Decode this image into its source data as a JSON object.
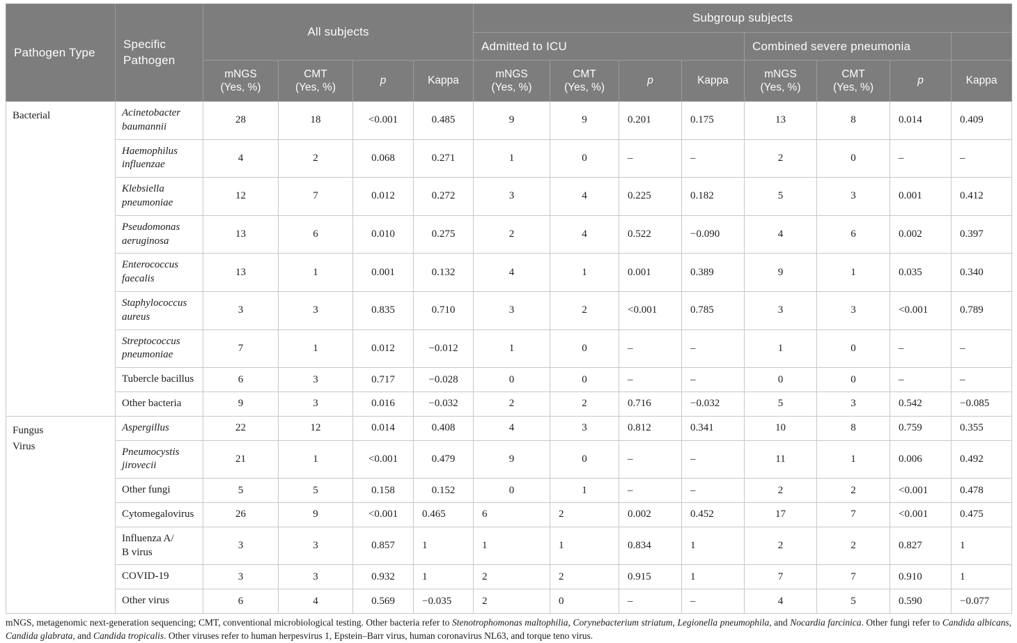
{
  "header": {
    "pathogen_type": "Pathogen Type",
    "specific_pathogen": "Specific Pathogen",
    "all_subjects": "All subjects",
    "subgroup_subjects": "Subgroup subjects",
    "admitted_to_icu": "Admitted to ICU",
    "combined_severe_pneumonia": "Combined severe pneumonia",
    "sub_headers": [
      {
        "label": "mNGS\n(Yes, %)"
      },
      {
        "label": "CMT\n(Yes, %)"
      },
      {
        "label": "p",
        "italic": true
      },
      {
        "label": "Kappa"
      },
      {
        "label": "mNGS\n(Yes, %)"
      },
      {
        "label": "CMT\n(Yes, %)"
      },
      {
        "label": "p",
        "italic": true
      },
      {
        "label": "Kappa"
      },
      {
        "label": "mNGS\n(Yes, %)"
      },
      {
        "label": "CMT\n(Yes, %)"
      },
      {
        "label": "p",
        "italic": true
      },
      {
        "label": "Kappa"
      }
    ]
  },
  "rows": [
    {
      "group": {
        "label": "Bacterial",
        "rowspan": 9
      },
      "pathogen": {
        "name": "Acinetobacter\nbaumannii",
        "italic": true
      },
      "values": [
        "28",
        "18",
        "<0.001",
        "0.485",
        "9",
        "9",
        "0.201",
        "0.175",
        "13",
        "8",
        "0.014",
        "0.409"
      ],
      "left_aligned_value_cols": [
        6,
        7,
        10,
        11
      ]
    },
    {
      "pathogen": {
        "name": "Haemophilus\ninfluenzae",
        "italic": true
      },
      "values": [
        "4",
        "2",
        "0.068",
        "0.271",
        "1",
        "0",
        "–",
        "–",
        "2",
        "0",
        "–",
        "–"
      ],
      "left_aligned_value_cols": [
        6,
        7,
        10,
        11
      ]
    },
    {
      "pathogen": {
        "name": "Klebsiella\npneumoniae",
        "italic": true
      },
      "values": [
        "12",
        "7",
        "0.012",
        "0.272",
        "3",
        "4",
        "0.225",
        "0.182",
        "5",
        "3",
        "0.001",
        "0.412"
      ],
      "left_aligned_value_cols": [
        6,
        7,
        10,
        11
      ]
    },
    {
      "pathogen": {
        "name": "Pseudomonas\naeruginosa",
        "italic": true
      },
      "values": [
        "13",
        "6",
        "0.010",
        "0.275",
        "2",
        "4",
        "0.522",
        "−0.090",
        "4",
        "6",
        "0.002",
        "0.397"
      ],
      "left_aligned_value_cols": [
        6,
        7,
        10,
        11
      ]
    },
    {
      "pathogen": {
        "name": "Enterococcus\nfaecalis",
        "italic": true
      },
      "values": [
        "13",
        "1",
        "0.001",
        "0.132",
        "4",
        "1",
        "0.001",
        "0.389",
        "9",
        "1",
        "0.035",
        "0.340"
      ],
      "left_aligned_value_cols": [
        6,
        7,
        10,
        11
      ]
    },
    {
      "pathogen": {
        "name": "Staphylococcus\naureus",
        "italic": true
      },
      "values": [
        "3",
        "3",
        "0.835",
        "0.710",
        "3",
        "2",
        "<0.001",
        "0.785",
        "3",
        "3",
        "<0.001",
        "0.789"
      ],
      "left_aligned_value_cols": [
        6,
        7,
        10,
        11
      ]
    },
    {
      "pathogen": {
        "name": "Streptococcus\npneumoniae",
        "italic": true
      },
      "values": [
        "7",
        "1",
        "0.012",
        "−0.012",
        "1",
        "0",
        "–",
        "–",
        "1",
        "0",
        "–",
        "–"
      ],
      "left_aligned_value_cols": [
        6,
        7,
        10,
        11
      ]
    },
    {
      "pathogen": {
        "name": "Tubercle bacillus",
        "italic": false
      },
      "values": [
        "6",
        "3",
        "0.717",
        "−0.028",
        "0",
        "0",
        "–",
        "–",
        "0",
        "0",
        "–",
        "–"
      ],
      "left_aligned_value_cols": [
        6,
        7,
        10,
        11
      ]
    },
    {
      "pathogen": {
        "name": "Other bacteria",
        "italic": false
      },
      "values": [
        "9",
        "3",
        "0.016",
        "−0.032",
        "2",
        "2",
        "0.716",
        "−0.032",
        "5",
        "3",
        "0.542",
        "−0.085"
      ],
      "left_aligned_value_cols": [
        6,
        7,
        10,
        11
      ]
    },
    {
      "group": {
        "label": "Fungus\nVirus",
        "rowspan": 7
      },
      "pathogen": {
        "name": "Aspergillus",
        "italic": true
      },
      "values": [
        "22",
        "12",
        "0.014",
        "0.408",
        "4",
        "3",
        "0.812",
        "0.341",
        "10",
        "8",
        "0.759",
        "0.355"
      ],
      "left_aligned_value_cols": [
        6,
        7,
        10,
        11
      ]
    },
    {
      "pathogen": {
        "name": "Pneumocystis\njirovecii",
        "italic": true
      },
      "values": [
        "21",
        "1",
        "<0.001",
        "0.479",
        "9",
        "0",
        "–",
        "–",
        "11",
        "1",
        "0.006",
        "0.492"
      ],
      "left_aligned_value_cols": [
        6,
        7,
        10,
        11
      ]
    },
    {
      "pathogen": {
        "name": "Other fungi",
        "italic": false
      },
      "values": [
        "5",
        "5",
        "0.158",
        "0.152",
        "0",
        "1",
        "–",
        "–",
        "2",
        "2",
        "<0.001",
        "0.478"
      ],
      "left_aligned_value_cols": [
        6,
        7,
        10,
        11
      ]
    },
    {
      "pathogen": {
        "name": "Cytomegalovirus",
        "italic": false
      },
      "values": [
        "26",
        "9",
        "<0.001",
        "0.465",
        "6",
        "2",
        "0.002",
        "0.452",
        "17",
        "7",
        "<0.001",
        "0.475"
      ],
      "left_aligned_value_cols": [
        3,
        4,
        5,
        6,
        7,
        10,
        11
      ]
    },
    {
      "pathogen": {
        "name": "Influenza A/\nB virus",
        "italic": false
      },
      "values": [
        "3",
        "3",
        "0.857",
        "1",
        "1",
        "1",
        "0.834",
        "1",
        "2",
        "2",
        "0.827",
        "1"
      ],
      "left_aligned_value_cols": [
        3,
        4,
        5,
        6,
        7,
        10,
        11
      ]
    },
    {
      "pathogen": {
        "name": "COVID-19",
        "italic": false
      },
      "values": [
        "3",
        "3",
        "0.932",
        "1",
        "2",
        "2",
        "0.915",
        "1",
        "7",
        "7",
        "0.910",
        "1"
      ],
      "left_aligned_value_cols": [
        3,
        4,
        5,
        6,
        7,
        10,
        11
      ]
    },
    {
      "pathogen": {
        "name": "Other virus",
        "italic": false
      },
      "values": [
        "6",
        "4",
        "0.569",
        "−0.035",
        "2",
        "0",
        "–",
        "–",
        "4",
        "5",
        "0.590",
        "−0.077"
      ],
      "left_aligned_value_cols": [
        3,
        4,
        5,
        6,
        7,
        10,
        11
      ]
    }
  ],
  "footnote": {
    "segments": [
      {
        "t": "mNGS, metagenomic next-generation sequencing; CMT, conventional microbiological testing. Other bacteria refer to "
      },
      {
        "t": "Stenotrophomonas maltophilia",
        "i": true
      },
      {
        "t": ", "
      },
      {
        "t": "Corynebacterium striatum",
        "i": true
      },
      {
        "t": ", "
      },
      {
        "t": "Legionella pneumophila",
        "i": true
      },
      {
        "t": ", and "
      },
      {
        "t": "Nocardia farcinica",
        "i": true
      },
      {
        "t": ". Other fungi refer to "
      },
      {
        "t": "Candida albicans",
        "i": true
      },
      {
        "t": ", "
      },
      {
        "t": "Candida glabrata",
        "i": true
      },
      {
        "t": ", and "
      },
      {
        "t": "Candida tropicalis",
        "i": true
      },
      {
        "t": ". Other viruses refer to human herpesvirus 1, Epstein–Barr virus, human coronavirus NL63, and torque teno virus."
      }
    ]
  }
}
